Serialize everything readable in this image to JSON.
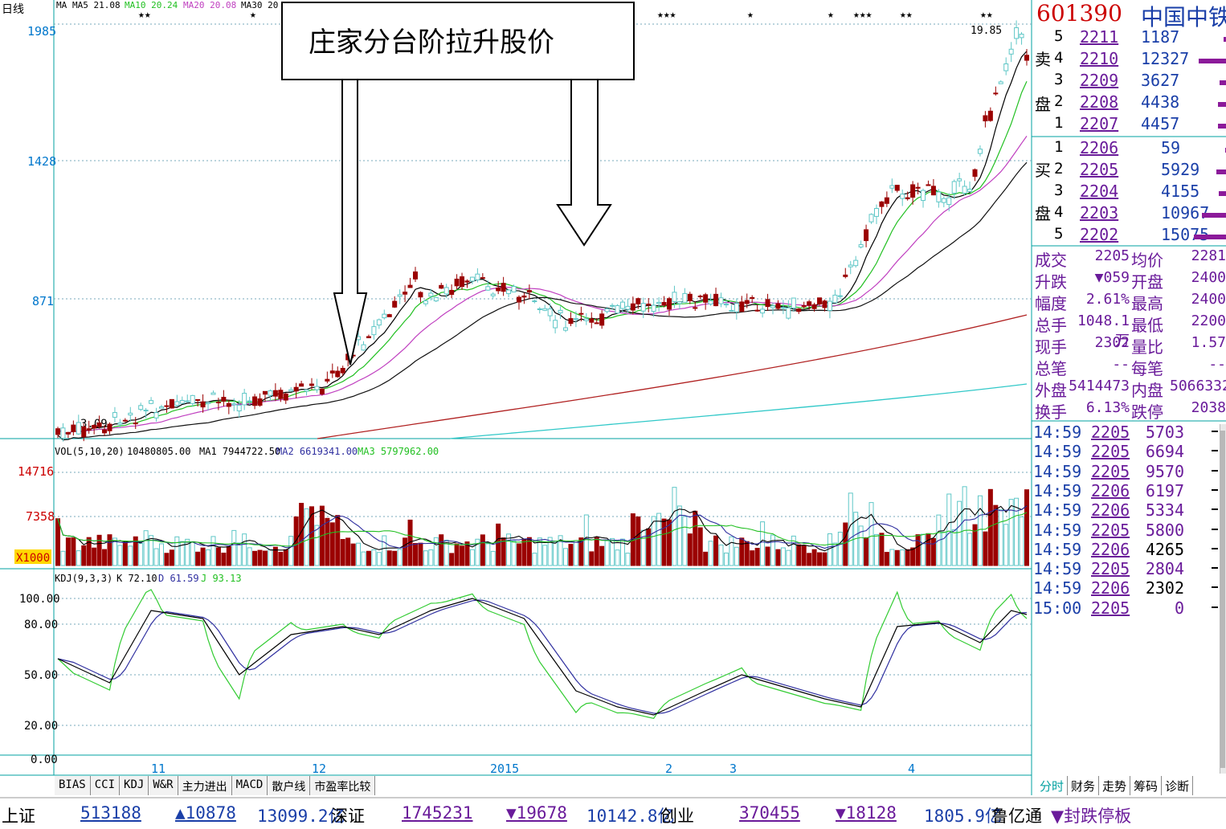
{
  "period": "日线",
  "ma_legend": {
    "ma": "MA",
    "ma5": "MA5 21.08",
    "ma10": "MA10 20.24",
    "ma20": "MA20 20.08",
    "ma30": "MA30 20"
  },
  "annotation": "庄家分台阶拉升股价",
  "price_axis": {
    "top": "1985",
    "mid1": "1428",
    "mid2": "871",
    "low_label": "3.09",
    "high_label": "19.85"
  },
  "vol_legend": {
    "name": "VOL(5,10,20)",
    "vol": "10480805.00",
    "ma1": "MA1 7944722.50",
    "ma2": "MA2 6619341.00",
    "ma3": "MA3 5797962.00"
  },
  "vol_axis": {
    "top": "14716",
    "mid": "7358",
    "unit": "X1000"
  },
  "kdj_legend": {
    "name": "KDJ(9,3,3)",
    "k": "K 72.10",
    "d": "D 61.59",
    "j": "J 93.13"
  },
  "kdj_axis": [
    "100.00",
    "80.00",
    "50.00",
    "20.00",
    "0.00"
  ],
  "date_axis": {
    "nov": "11",
    "dec": "12",
    "y2015": "2015",
    "feb": "2",
    "mar": "3",
    "apr": "4"
  },
  "indicator_tabs": [
    "BIAS",
    "CCI",
    "KDJ",
    "W&R",
    "主力进出",
    "MACD",
    "散户线",
    "市盈率比较"
  ],
  "right_tabs": [
    "分时",
    "财务",
    "走势",
    "筹码",
    "诊断"
  ],
  "stock": {
    "code": "601390",
    "name": "中国中铁"
  },
  "sell_label": [
    "卖",
    "盘"
  ],
  "buy_label": [
    "买",
    "盘"
  ],
  "sell_orders": [
    {
      "level": "5",
      "price": "2211",
      "vol": "1187"
    },
    {
      "level": "4",
      "price": "2210",
      "vol": "12327"
    },
    {
      "level": "3",
      "price": "2209",
      "vol": "3627"
    },
    {
      "level": "2",
      "price": "2208",
      "vol": "4438"
    },
    {
      "level": "1",
      "price": "2207",
      "vol": "4457"
    }
  ],
  "buy_orders": [
    {
      "level": "1",
      "price": "2206",
      "vol": "59"
    },
    {
      "level": "2",
      "price": "2205",
      "vol": "5929"
    },
    {
      "level": "3",
      "price": "2204",
      "vol": "4155"
    },
    {
      "level": "4",
      "price": "2203",
      "vol": "10967"
    },
    {
      "level": "5",
      "price": "2202",
      "vol": "15075"
    }
  ],
  "quote": [
    {
      "l1": "成交",
      "v1": "2205",
      "l2": "均价",
      "v2": "2281"
    },
    {
      "l1": "升跌",
      "v1": "▼059",
      "l2": "开盘",
      "v2": "2400"
    },
    {
      "l1": "幅度",
      "v1": "2.61%",
      "l2": "最高",
      "v2": "2400"
    },
    {
      "l1": "总手",
      "v1": "1048.1万",
      "l2": "最低",
      "v2": "2200"
    },
    {
      "l1": "现手",
      "v1": "2302",
      "l2": "量比",
      "v2": "1.57"
    },
    {
      "l1": "总笔",
      "v1": "--",
      "l2": "每笔",
      "v2": "--"
    },
    {
      "l1": "外盘",
      "v1": "5414473",
      "l2": "内盘",
      "v2": "5066332"
    },
    {
      "l1": "换手",
      "v1": "6.13%",
      "l2": "跌停",
      "v2": "2038"
    }
  ],
  "ticks": [
    {
      "time": "14:59",
      "price": "2205",
      "vol": "5703"
    },
    {
      "time": "14:59",
      "price": "2205",
      "vol": "6694"
    },
    {
      "time": "14:59",
      "price": "2205",
      "vol": "9570"
    },
    {
      "time": "14:59",
      "price": "2206",
      "vol": "6197"
    },
    {
      "time": "14:59",
      "price": "2206",
      "vol": "5334"
    },
    {
      "time": "14:59",
      "price": "2205",
      "vol": "5800"
    },
    {
      "time": "14:59",
      "price": "2206",
      "vol": "4265"
    },
    {
      "time": "14:59",
      "price": "2205",
      "vol": "2804"
    },
    {
      "time": "14:59",
      "price": "2206",
      "vol": "2302"
    },
    {
      "time": "15:00",
      "price": "2205",
      "vol": "0"
    }
  ],
  "status": {
    "sh_label": "上证",
    "sh_val": "513188",
    "sh_chg": "▲10878",
    "sh_amt": "13099.2亿",
    "sz_label": "深证",
    "sz_val": "1745231",
    "sz_chg": "▼19678",
    "sz_amt": "10142.8亿",
    "cy_label": "创业",
    "cy_val": "370455",
    "cy_chg": "▼18128",
    "cy_amt": "1805.9亿",
    "lu_label": "鲁亿通",
    "limit": "▼封跌停板"
  },
  "colors": {
    "up": "#9b0000",
    "down": "#5fc7c7",
    "ma5": "#000000",
    "ma10": "#22c022",
    "ma20": "#c040c0",
    "ma30": "#111111",
    "ma60": "#b02020",
    "ma120": "#30c8c8",
    "kdj_k": "#000000",
    "kdj_d": "#3030a0",
    "kdj_j": "#33cc33",
    "grid": "#00a0a0"
  }
}
